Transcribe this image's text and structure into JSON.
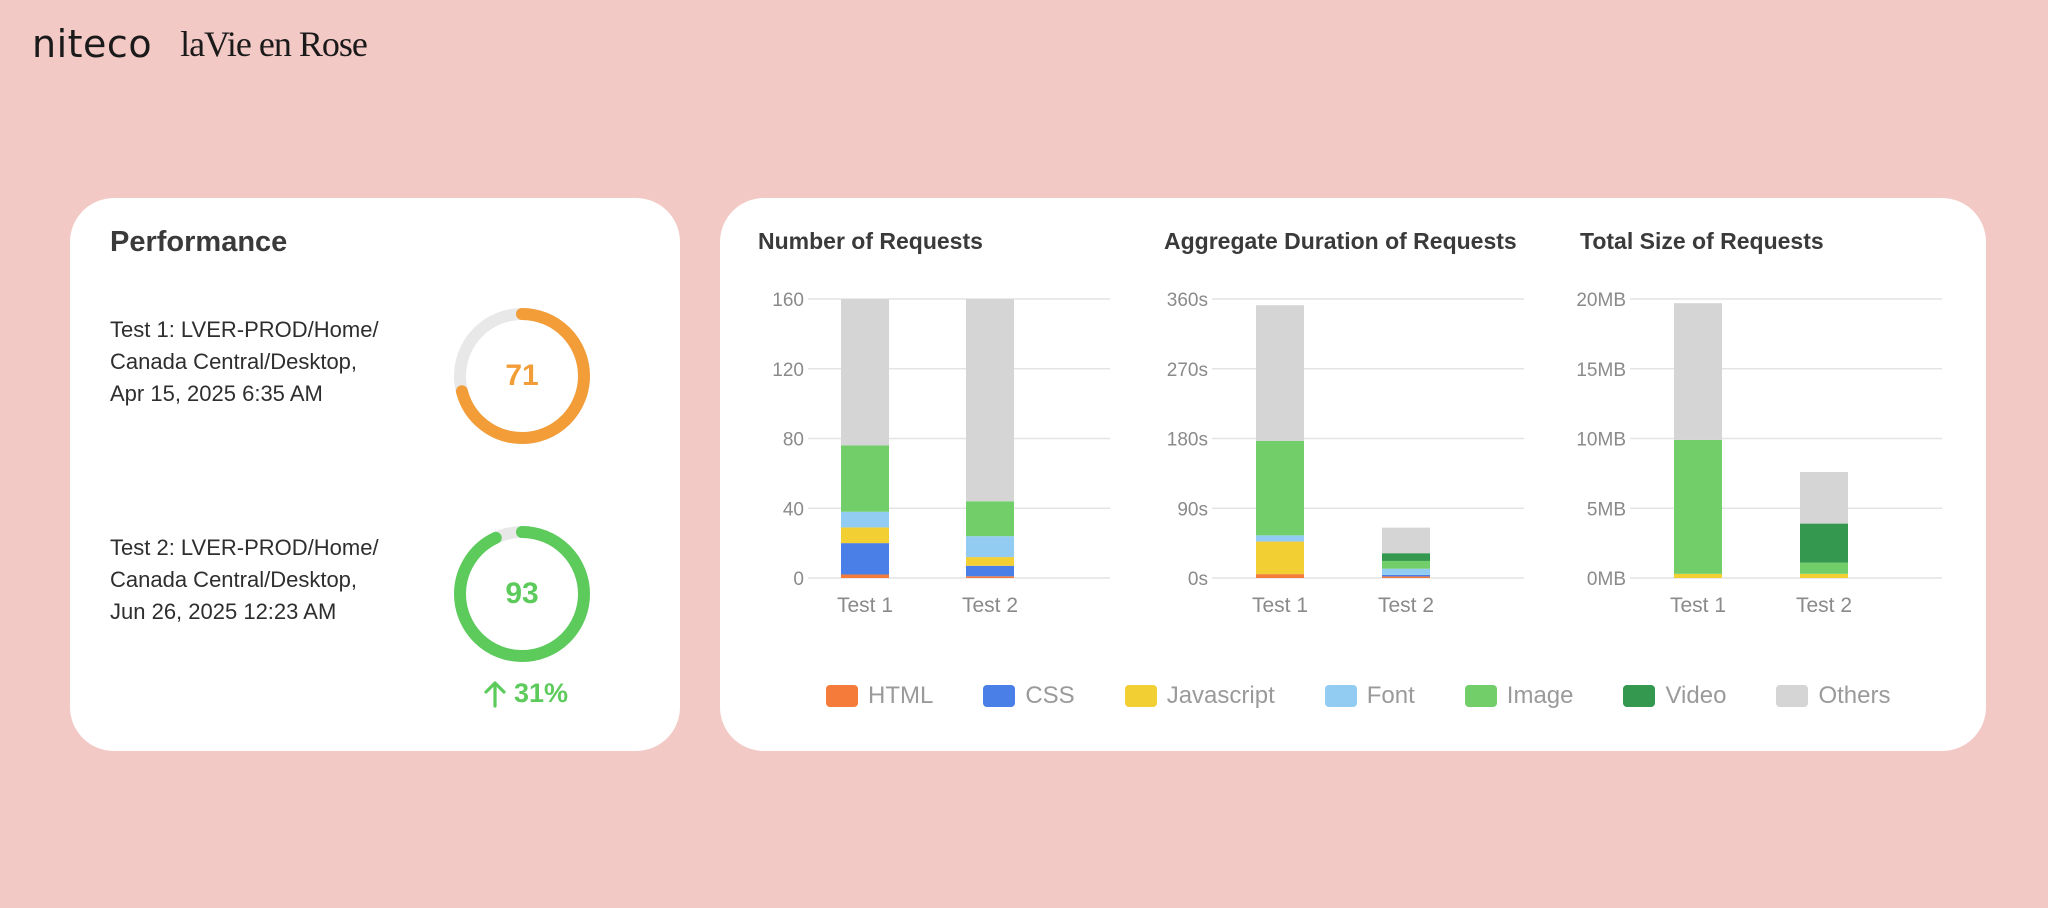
{
  "brand": {
    "niteco": "niteco",
    "client": "laVie en Rose"
  },
  "performance": {
    "title": "Performance",
    "tests": [
      {
        "label_lines": [
          "Test 1: LVER-PROD/Home/",
          "Canada Central/Desktop,",
          "Apr 15, 2025 6:35 AM"
        ],
        "score": 71,
        "score_label": "71",
        "color": "#f29d38"
      },
      {
        "label_lines": [
          "Test 2: LVER-PROD/Home/",
          "Canada Central/Desktop,",
          "Jun 26, 2025 12:23 AM"
        ],
        "score": 93,
        "score_label": "93",
        "color": "#5ccb5c"
      }
    ],
    "delta": "31%",
    "delta_color": "#5ccb5c",
    "track_color": "#e8e8e8"
  },
  "colors": {
    "HTML": "#f47b3a",
    "CSS": "#4a7fe8",
    "Javascript": "#f2cf33",
    "Font": "#92ccf2",
    "Image": "#71ce69",
    "Video": "#34994e",
    "Others": "#d5d5d5"
  },
  "chart_data": [
    {
      "type": "bar",
      "stacked": true,
      "title": "Number of Requests",
      "categories": [
        "Test 1",
        "Test 2"
      ],
      "ylim": [
        0,
        160
      ],
      "yticks": [
        0,
        40,
        80,
        120,
        160
      ],
      "ytick_labels": [
        "0",
        "40",
        "80",
        "120",
        "160"
      ],
      "series": [
        {
          "name": "HTML",
          "values": [
            2,
            1
          ]
        },
        {
          "name": "CSS",
          "values": [
            18,
            6
          ]
        },
        {
          "name": "Javascript",
          "values": [
            9,
            5
          ]
        },
        {
          "name": "Font",
          "values": [
            9,
            12
          ]
        },
        {
          "name": "Image",
          "values": [
            38,
            20
          ]
        },
        {
          "name": "Video",
          "values": [
            0,
            0
          ]
        },
        {
          "name": "Others",
          "values": [
            84,
            116
          ]
        }
      ]
    },
    {
      "type": "bar",
      "stacked": true,
      "title": "Aggregate Duration of Requests",
      "categories": [
        "Test 1",
        "Test 2"
      ],
      "ylim": [
        0,
        360
      ],
      "yticks": [
        0,
        90,
        180,
        270,
        360
      ],
      "ytick_labels": [
        "0s",
        "90s",
        "180s",
        "270s",
        "360s"
      ],
      "series": [
        {
          "name": "HTML",
          "values": [
            5,
            2
          ]
        },
        {
          "name": "CSS",
          "values": [
            0,
            2
          ]
        },
        {
          "name": "Javascript",
          "values": [
            42,
            0
          ]
        },
        {
          "name": "Font",
          "values": [
            8,
            8
          ]
        },
        {
          "name": "Image",
          "values": [
            122,
            10
          ]
        },
        {
          "name": "Video",
          "values": [
            0,
            10
          ]
        },
        {
          "name": "Others",
          "values": [
            175,
            33
          ]
        }
      ]
    },
    {
      "type": "bar",
      "stacked": true,
      "title": "Total Size of Requests",
      "categories": [
        "Test 1",
        "Test 2"
      ],
      "ylim": [
        0,
        20
      ],
      "yticks": [
        0,
        5,
        10,
        15,
        20
      ],
      "ytick_labels": [
        "0MB",
        "5MB",
        "10MB",
        "15MB",
        "20MB"
      ],
      "series": [
        {
          "name": "HTML",
          "values": [
            0,
            0
          ]
        },
        {
          "name": "CSS",
          "values": [
            0,
            0
          ]
        },
        {
          "name": "Javascript",
          "values": [
            0.3,
            0.3
          ]
        },
        {
          "name": "Font",
          "values": [
            0,
            0
          ]
        },
        {
          "name": "Image",
          "values": [
            9.6,
            0.8
          ]
        },
        {
          "name": "Video",
          "values": [
            0,
            2.8
          ]
        },
        {
          "name": "Others",
          "values": [
            9.8,
            3.7
          ]
        }
      ]
    }
  ],
  "legend": [
    {
      "label": "HTML",
      "color": "#f47b3a"
    },
    {
      "label": "CSS",
      "color": "#4a7fe8"
    },
    {
      "label": "Javascript",
      "color": "#f2cf33"
    },
    {
      "label": "Font",
      "color": "#92ccf2"
    },
    {
      "label": "Image",
      "color": "#71ce69"
    },
    {
      "label": "Video",
      "color": "#34994e"
    },
    {
      "label": "Others",
      "color": "#d5d5d5"
    }
  ]
}
